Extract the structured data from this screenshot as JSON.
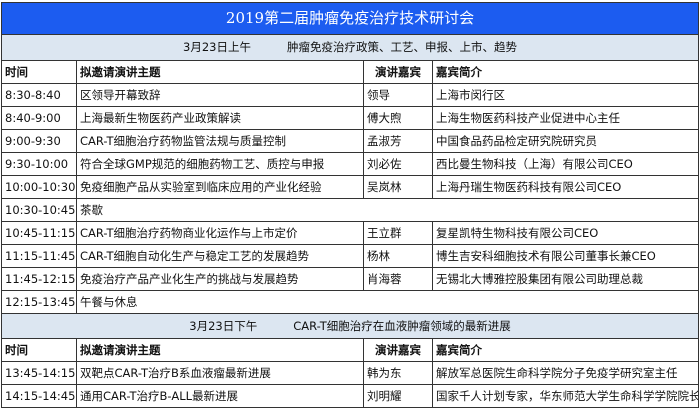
{
  "title": "2019第二届肿瘤免疫治疗技术研讨会",
  "colors": {
    "title_bg": "#1c5cf0",
    "session_bg": "#dce6f1"
  },
  "headers": {
    "time": "时间",
    "topic": "拟邀请演讲主题",
    "speaker": "演讲嘉宾",
    "bio": "嘉宾简介"
  },
  "sessions": [
    {
      "date": "3月23日上午",
      "theme": "肿瘤免疫治疗政策、工艺、申报、上市、趋势",
      "rows": [
        {
          "time": "8:30-8:40",
          "topic": "区领导开幕致辞",
          "speaker": "领导",
          "bio": "上海市闵行区"
        },
        {
          "time": "8:40-9:00",
          "topic": "上海最新生物医药产业政策解读",
          "speaker": "傅大煦",
          "bio": "上海生物医药科技产业促进中心主任"
        },
        {
          "time": "9:00-9:30",
          "topic": "CAR-T细胞治疗药物监管法规与质量控制",
          "speaker": "孟淑芳",
          "bio": "中国食品药品检定研究院研究员"
        },
        {
          "time": "9:30-10:00",
          "topic": "符合全球GMP规范的细胞药物工艺、质控与申报",
          "speaker": "刘必佐",
          "bio": "西比曼生物科技（上海）有限公司CEO"
        },
        {
          "time": "10:00-10:30",
          "topic": "免疫细胞产品从实验室到临床应用的产业化经验",
          "speaker": "吴岚林",
          "bio": "上海丹瑞生物医药科技有限公司CEO"
        },
        {
          "time": "10:30-10:45",
          "topic": "茶歇"
        },
        {
          "time": "10:45-11:15",
          "topic": "CAR-T细胞治疗药物商业化运作与上市定价",
          "speaker": "王立群",
          "bio": "复星凯特生物科技有限公司CEO"
        },
        {
          "time": "11:15-11:45",
          "topic": "CAR-T细胞自动化生产与稳定工艺的发展趋势",
          "speaker": "杨林",
          "bio": "博生吉安科细胞技术有限公司董事长兼CEO"
        },
        {
          "time": "11:45-12:15",
          "topic": "免疫治疗产品产业化生产的挑战与发展趋势",
          "speaker": "肖海蓉",
          "bio": "无锡北大博雅控股集团有限公司助理总裁"
        },
        {
          "time": "12:15-13:45",
          "topic": "午餐与休息"
        }
      ]
    },
    {
      "date": "3月23日下午",
      "theme": "CAR-T细胞治疗在血液肿瘤领域的最新进展",
      "rows": [
        {
          "time": "13:45-14:15",
          "topic": "双靶点CAR-T治疗B系血液瘤最新进展",
          "speaker": "韩为东",
          "bio": "解放军总医院生命科学院分子免疫学研究室主任"
        },
        {
          "time": "14:15-14:45",
          "topic": "通用CAR-T治疗B-ALL最新进展",
          "speaker": "刘明耀",
          "bio": "国家千人计划专家，华东师范大学生命科学学院院长"
        }
      ]
    }
  ]
}
